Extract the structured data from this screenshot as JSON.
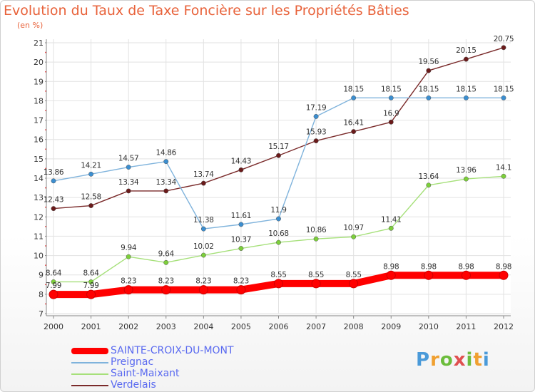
{
  "title": "Evolution du Taux de Taxe Foncière sur les Propriétés Bâties",
  "subtitle": "(en %)",
  "brand": {
    "text": "Proxiti"
  },
  "chart_data": {
    "type": "line",
    "title": "Evolution du Taux de Taxe Foncière sur les Propriétés Bâties",
    "ylabel": "(en %)",
    "xlabel": "",
    "x": [
      "2000",
      "2001",
      "2002",
      "2003",
      "2004",
      "2005",
      "2006",
      "2007",
      "2008",
      "2009",
      "2010",
      "2011",
      "2012"
    ],
    "ylim": [
      7,
      21
    ],
    "yticks": [
      7,
      8,
      9,
      10,
      11,
      12,
      13,
      14,
      15,
      16,
      17,
      18,
      19,
      20,
      21
    ],
    "grid": true,
    "legend_position": "bottom-left",
    "series": [
      {
        "name": "SAINTE-CROIX-DU-MONT",
        "color": "#ff0000",
        "marker_color": "#ff0000",
        "values": [
          7.99,
          7.99,
          8.23,
          8.23,
          8.23,
          8.23,
          8.55,
          8.55,
          8.55,
          8.98,
          8.98,
          8.98,
          8.98
        ],
        "labels": [
          "7.99",
          "7.99",
          "8.23",
          "8.23",
          "8.23",
          "8.23",
          "8.55",
          "8.55",
          "8.55",
          "8.98",
          "8.98",
          "8.98",
          "8.98"
        ]
      },
      {
        "name": "Preignac",
        "color": "#7fb3dc",
        "marker_color": "#3b8ed0",
        "values": [
          13.86,
          14.21,
          14.57,
          14.86,
          11.38,
          11.61,
          11.9,
          17.19,
          18.15,
          18.15,
          18.15,
          18.15,
          18.15
        ],
        "labels": [
          "13.86",
          "14.21",
          "14.57",
          "14.86",
          "11.38",
          "11.61",
          "11.9",
          "17.19",
          "18.15",
          "18.15",
          "18.15",
          "18.15",
          "18.15"
        ]
      },
      {
        "name": "Saint-Maixant",
        "color": "#a6e07a",
        "marker_color": "#7ccf3a",
        "values": [
          8.64,
          8.64,
          9.94,
          9.64,
          10.02,
          10.37,
          10.68,
          10.86,
          10.97,
          11.41,
          13.64,
          13.96,
          14.1
        ],
        "labels": [
          "8.64",
          "8.64",
          "9.94",
          "9.64",
          "10.02",
          "10.37",
          "10.68",
          "10.86",
          "10.97",
          "11.41",
          "13.64",
          "13.96",
          "14.1"
        ]
      },
      {
        "name": "Verdelais",
        "color": "#7a2a2a",
        "marker_color": "#6a1a1a",
        "values": [
          12.43,
          12.58,
          13.34,
          13.34,
          13.74,
          14.43,
          15.17,
          15.93,
          16.41,
          16.9,
          19.56,
          20.15,
          20.75
        ],
        "labels": [
          "12.43",
          "12.58",
          "13.34",
          "13.34",
          "13.74",
          "14.43",
          "15.17",
          "15.93",
          "16.41",
          "16.9",
          "19.56",
          "20.15",
          "20.75"
        ]
      }
    ]
  }
}
